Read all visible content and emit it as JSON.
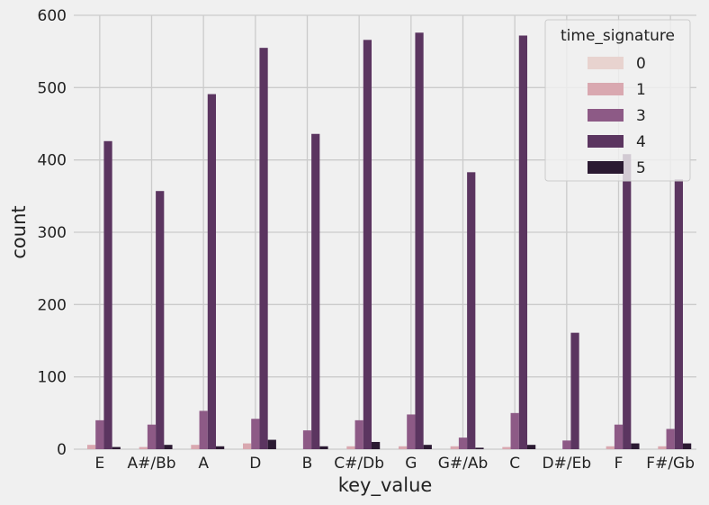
{
  "chart_data": {
    "type": "bar",
    "title": "",
    "xlabel": "key_value",
    "ylabel": "count",
    "ylim": [
      0,
      600
    ],
    "yticks": [
      0,
      100,
      200,
      300,
      400,
      500,
      600
    ],
    "grid": true,
    "categories": [
      "E",
      "A#/Bb",
      "A",
      "D",
      "B",
      "C#/Db",
      "G",
      "G#/Ab",
      "C",
      "D#/Eb",
      "F",
      "F#/Gb"
    ],
    "legend": {
      "title": "time_signature",
      "placement": "top-right"
    },
    "series": [
      {
        "name": "0",
        "color": "#e8d3cf",
        "values": [
          0,
          0,
          0,
          0,
          0,
          0,
          0,
          0,
          0,
          0,
          0,
          0
        ]
      },
      {
        "name": "1",
        "color": "#d9a8b0",
        "values": [
          6,
          3,
          6,
          8,
          0,
          4,
          4,
          4,
          3,
          0,
          4,
          4
        ]
      },
      {
        "name": "3",
        "color": "#8d5a86",
        "values": [
          40,
          34,
          53,
          42,
          26,
          40,
          48,
          16,
          50,
          12,
          34,
          28
        ]
      },
      {
        "name": "4",
        "color": "#5b3560",
        "values": [
          426,
          357,
          491,
          555,
          436,
          566,
          576,
          383,
          572,
          161,
          408,
          373
        ]
      },
      {
        "name": "5",
        "color": "#2b1a32",
        "values": [
          3,
          6,
          4,
          13,
          4,
          10,
          6,
          2,
          6,
          0,
          8,
          8
        ]
      }
    ]
  }
}
